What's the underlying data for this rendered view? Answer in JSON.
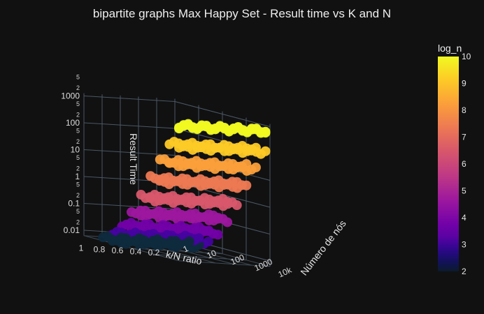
{
  "chart_data": {
    "type": "scatter",
    "title": "bipartite graphs Max Happy Set - Result time vs K and N",
    "xlabel": "k/N ratio",
    "ylabel": "Número de nós",
    "zlabel": "Result Time",
    "colorbar_title": "log_n",
    "x_ticks": [
      "0.2",
      "0.4",
      "0.6",
      "0.8",
      "1"
    ],
    "y_ticks": [
      "1",
      "10",
      "100",
      "1000",
      "10k"
    ],
    "z_ticks": [
      "0.01",
      "0.1",
      "1",
      "10",
      "100",
      "1000"
    ],
    "z_minor_ticks": [
      "2",
      "5"
    ],
    "colorbar_ticks": [
      "2",
      "3",
      "4",
      "5",
      "6",
      "7",
      "8",
      "9",
      "10"
    ],
    "color_range": [
      2,
      10
    ],
    "z_log": true,
    "y_log": true,
    "colors": [
      "#0d0887",
      "#46039f",
      "#7201a8",
      "#9c179e",
      "#bd3786",
      "#d8576b",
      "#ed7953",
      "#fb9f3a",
      "#fdca26",
      "#f0f921"
    ],
    "series": [
      {
        "log_n": 2,
        "time": 0.008
      },
      {
        "log_n": 3,
        "time": 0.015
      },
      {
        "log_n": 4,
        "time": 0.04
      },
      {
        "log_n": 5,
        "time": 0.15
      },
      {
        "log_n": 6,
        "time": 0.7
      },
      {
        "log_n": 7,
        "time": 4
      },
      {
        "log_n": 8,
        "time": 22
      },
      {
        "log_n": 9,
        "time": 120
      },
      {
        "log_n": 10,
        "time": 700
      }
    ],
    "k_values": [
      0.05,
      0.1,
      0.15,
      0.2,
      0.25,
      0.3,
      0.35,
      0.4,
      0.45,
      0.5,
      0.55,
      0.6,
      0.65,
      0.7,
      0.75,
      0.8,
      0.85,
      0.9,
      0.95,
      1.0
    ]
  }
}
